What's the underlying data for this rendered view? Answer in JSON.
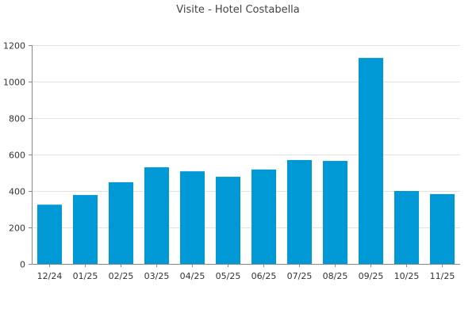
{
  "chart_data": {
    "type": "bar",
    "title": "Visite - Hotel Costabella",
    "xlabel": "",
    "ylabel": "",
    "categories": [
      "12/24",
      "01/25",
      "02/25",
      "03/25",
      "04/25",
      "05/25",
      "06/25",
      "07/25",
      "08/25",
      "09/25",
      "10/25",
      "11/25"
    ],
    "values": [
      325,
      378,
      448,
      530,
      508,
      478,
      518,
      570,
      565,
      1130,
      400,
      383
    ],
    "ylim": [
      0,
      1200
    ],
    "yticks": [
      0,
      200,
      400,
      600,
      800,
      1000,
      1200
    ],
    "grid": true,
    "bar_color": "#0099d6"
  }
}
